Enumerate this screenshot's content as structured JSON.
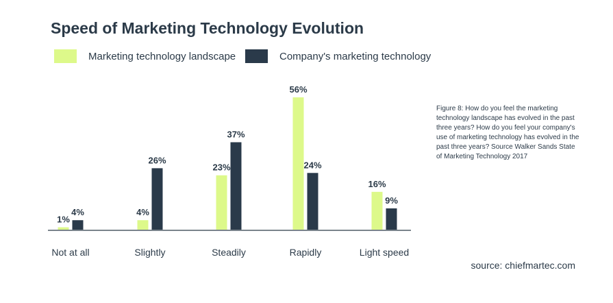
{
  "colors": {
    "series_landscape": "#ddf98a",
    "series_company": "#2a3a4a",
    "text": "#2b3a48",
    "axis": "#2b3a48"
  },
  "chart_data": {
    "type": "bar",
    "title": "Speed of Marketing Technology Evolution",
    "categories": [
      "Not at all",
      "Slightly",
      "Steadily",
      "Rapidly",
      "Light speed"
    ],
    "series": [
      {
        "name": "Marketing technology landscape",
        "values": [
          1,
          4,
          23,
          56,
          16
        ],
        "labels": [
          "1%",
          "4%",
          "23%",
          "56%",
          "16%"
        ]
      },
      {
        "name": "Company's marketing technology",
        "values": [
          4,
          26,
          37,
          24,
          9
        ],
        "labels": [
          "4%",
          "26%",
          "37%",
          "24%",
          "9%"
        ]
      }
    ],
    "xlabel": "",
    "ylabel": "",
    "ylim": [
      0,
      56
    ],
    "grid": false,
    "legend_position": "top-left"
  },
  "legend": {
    "items": [
      {
        "label": "Marketing technology landscape"
      },
      {
        "label": "Company's marketing technology"
      }
    ]
  },
  "caption": "Figure 8: How do you feel the marketing technology landscape has evolved in the past three years? How do you feel your company's use of marketing technology has evolved in the past three years? Source Walker Sands State of Marketing Technology 2017",
  "source": "source: chiefmartec.com"
}
